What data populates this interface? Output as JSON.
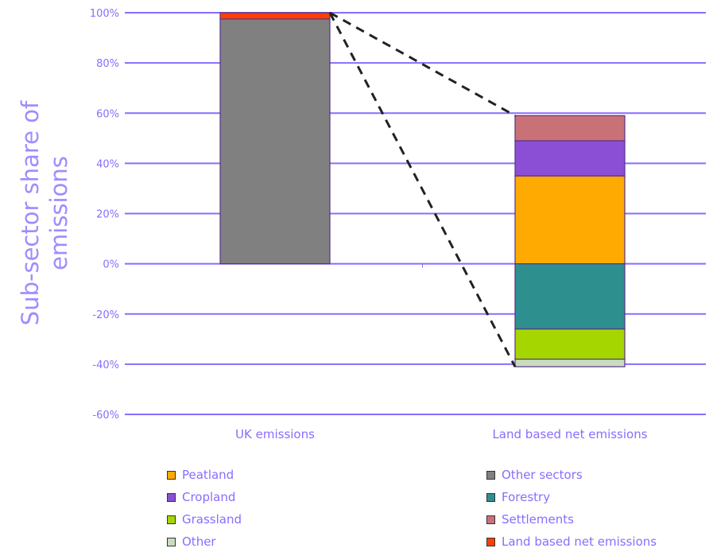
{
  "chart_data": {
    "type": "bar",
    "stacked": true,
    "ylabel": "Sub-sector share of emissions",
    "xlabel": "",
    "title": "",
    "ylim": [
      -60,
      100
    ],
    "yticks": [
      100,
      80,
      60,
      40,
      20,
      0,
      -20,
      -40,
      -60
    ],
    "ytick_labels": [
      "100%",
      "80%",
      "60%",
      "40%",
      "20%",
      "0%",
      "-20%",
      "-40%",
      "-60%"
    ],
    "grid": true,
    "legend_position": "bottom",
    "categories": [
      "UK emissions",
      "Land based net emissions"
    ],
    "series": [
      {
        "name": "Other sectors",
        "color": "#808080",
        "values": [
          97.5,
          0
        ]
      },
      {
        "name": "Land based net emissions",
        "color": "#ff4000",
        "values": [
          2.5,
          0
        ]
      },
      {
        "name": "Peatland",
        "color": "#ffaa00",
        "values": [
          0,
          35
        ]
      },
      {
        "name": "Cropland",
        "color": "#8b4fd6",
        "values": [
          0,
          14
        ]
      },
      {
        "name": "Settlements",
        "color": "#c87278",
        "values": [
          0,
          10
        ]
      },
      {
        "name": "Forestry",
        "color": "#2e8f8f",
        "values": [
          0,
          -26
        ]
      },
      {
        "name": "Grassland",
        "color": "#a5d600",
        "values": [
          0,
          -12
        ]
      },
      {
        "name": "Other",
        "color": "#c8dcc0",
        "values": [
          0,
          -3
        ]
      }
    ],
    "legend": [
      {
        "label": "Peatland",
        "color": "#ffaa00"
      },
      {
        "label": "Other sectors",
        "color": "#808080"
      },
      {
        "label": "Cropland",
        "color": "#8b4fd6"
      },
      {
        "label": "Forestry",
        "color": "#2e8f8f"
      },
      {
        "label": "Grassland",
        "color": "#a5d600"
      },
      {
        "label": "Settlements",
        "color": "#c87278"
      },
      {
        "label": "Other",
        "color": "#c8dcc0"
      },
      {
        "label": "Land based net emissions",
        "color": "#ff4000"
      }
    ],
    "colors": {
      "text": "#8a6cff",
      "grid": "#8a6cff",
      "axis_title": "#a08cff"
    }
  }
}
